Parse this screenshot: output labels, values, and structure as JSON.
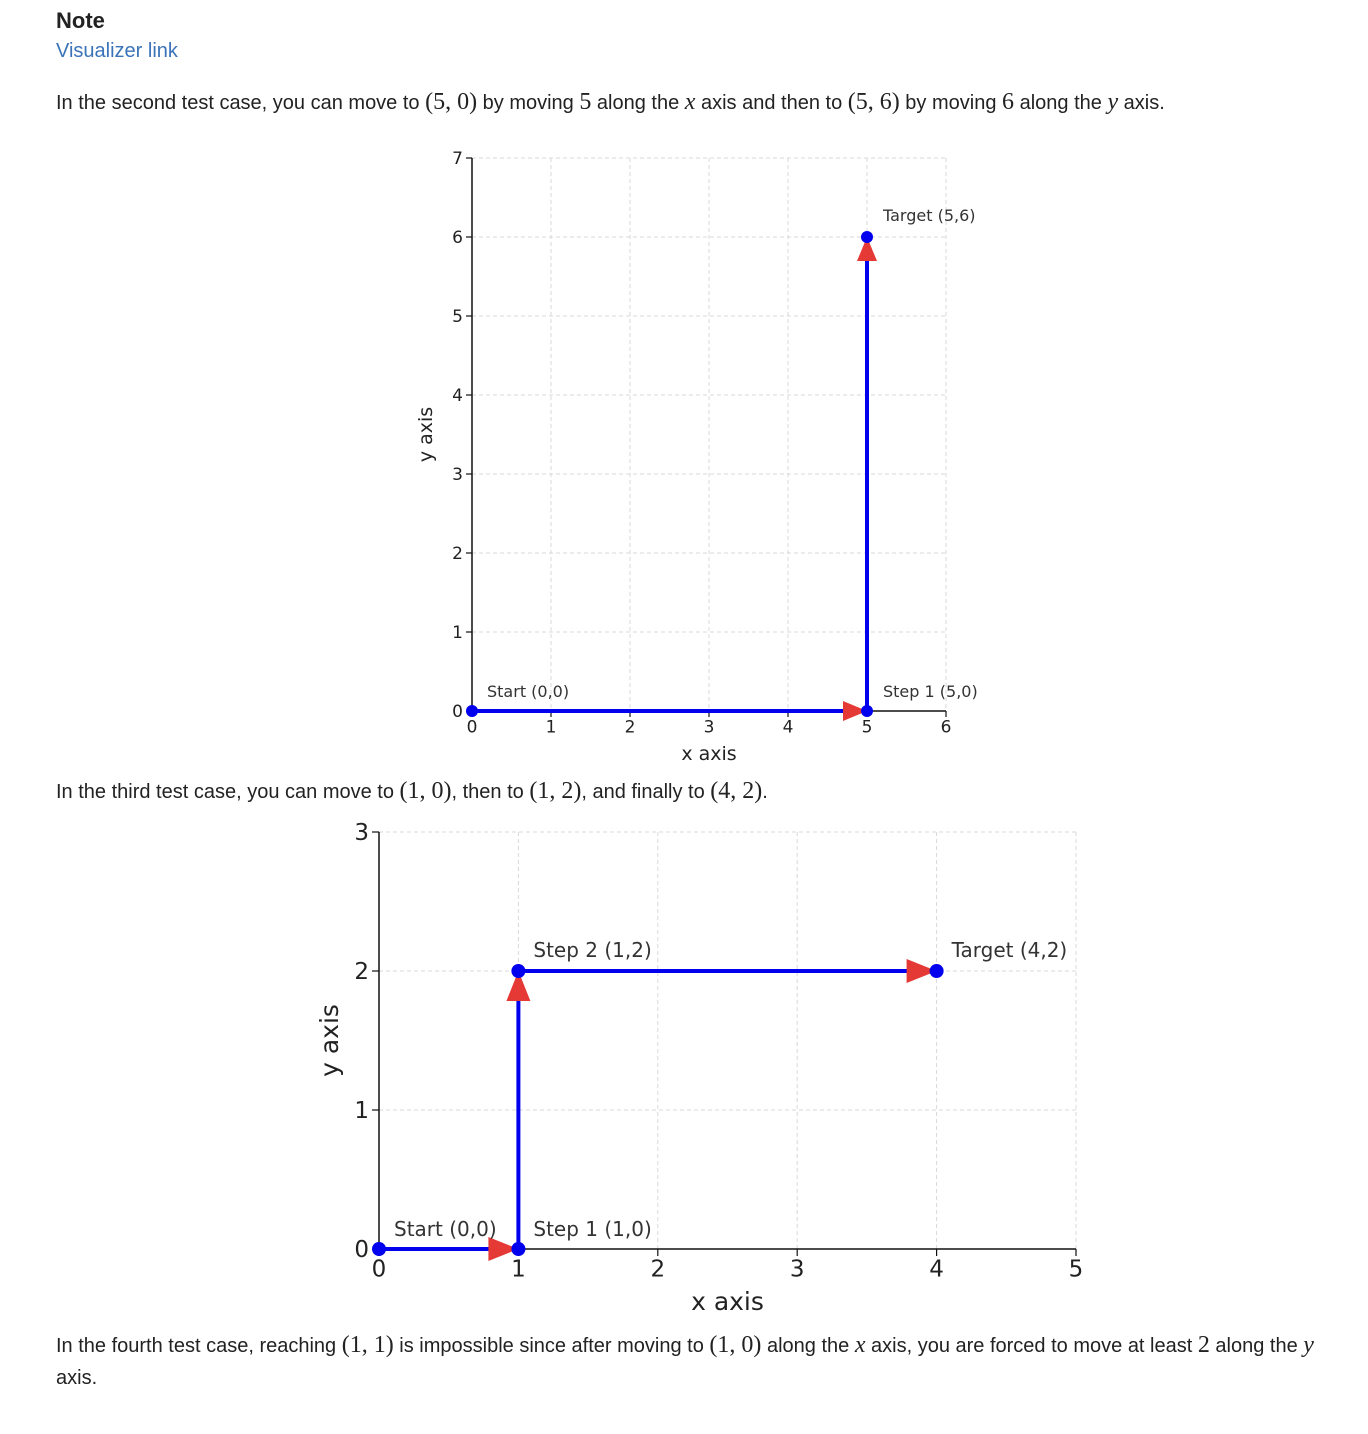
{
  "note": {
    "title": "Note",
    "link_label": "Visualizer link"
  },
  "paragraphs": {
    "p1": {
      "t1": "In the second test case, you can move to ",
      "m1": "(5, 0)",
      "t2": " by moving ",
      "m2": "5",
      "t3": " along the ",
      "m3": "x",
      "t4": " axis and then to ",
      "m4": "(5, 6)",
      "t5": " by moving ",
      "m5": "6",
      "t6": " along the ",
      "m6": "y",
      "t7": " axis."
    },
    "p2": {
      "t1": "In the third test case, you can move to ",
      "m1": "(1, 0)",
      "t2": ", then to ",
      "m2": "(1, 2)",
      "t3": ", and finally to ",
      "m3": "(4, 2)",
      "t4": "."
    },
    "p3": {
      "t1": "In the fourth test case, reaching ",
      "m1": "(1, 1)",
      "t2": " is impossible since after moving to ",
      "m2": "(1, 0)",
      "t3": " along the ",
      "m3": "x",
      "t4": " axis, you are forced to move at least ",
      "m4": "2",
      "t5": " along the ",
      "m5": "y",
      "t6": " axis."
    }
  },
  "chart_data": [
    {
      "type": "line",
      "xlabel": "x axis",
      "ylabel": "y axis",
      "xlim": [
        0,
        6
      ],
      "ylim": [
        0,
        7
      ],
      "xticks": [
        "0",
        "1",
        "2",
        "3",
        "4",
        "5",
        "6"
      ],
      "yticks": [
        "0",
        "1",
        "2",
        "3",
        "4",
        "5",
        "6",
        "7"
      ],
      "grid": true,
      "path": [
        [
          0,
          0
        ],
        [
          5,
          0
        ],
        [
          5,
          6
        ]
      ],
      "points": [
        {
          "x": 0,
          "y": 0,
          "label": "Start (0,0)"
        },
        {
          "x": 5,
          "y": 0,
          "label": "Step 1 (5,0)"
        },
        {
          "x": 5,
          "y": 6,
          "label": "Target (5,6)"
        }
      ],
      "colors": {
        "path": "#0000ee",
        "arrow": "#e53935",
        "grid": "#d9d9d9"
      }
    },
    {
      "type": "line",
      "xlabel": "x axis",
      "ylabel": "y axis",
      "xlim": [
        0,
        5
      ],
      "ylim": [
        0,
        3
      ],
      "xticks": [
        "0",
        "1",
        "2",
        "3",
        "4",
        "5"
      ],
      "yticks": [
        "0",
        "1",
        "2",
        "3"
      ],
      "grid": true,
      "path": [
        [
          0,
          0
        ],
        [
          1,
          0
        ],
        [
          1,
          2
        ],
        [
          4,
          2
        ]
      ],
      "points": [
        {
          "x": 0,
          "y": 0,
          "label": "Start (0,0)"
        },
        {
          "x": 1,
          "y": 0,
          "label": "Step 1 (1,0)"
        },
        {
          "x": 1,
          "y": 2,
          "label": "Step 2 (1,2)"
        },
        {
          "x": 4,
          "y": 2,
          "label": "Target (4,2)"
        }
      ],
      "colors": {
        "path": "#0000ee",
        "arrow": "#e53935",
        "grid": "#d9d9d9"
      }
    }
  ]
}
